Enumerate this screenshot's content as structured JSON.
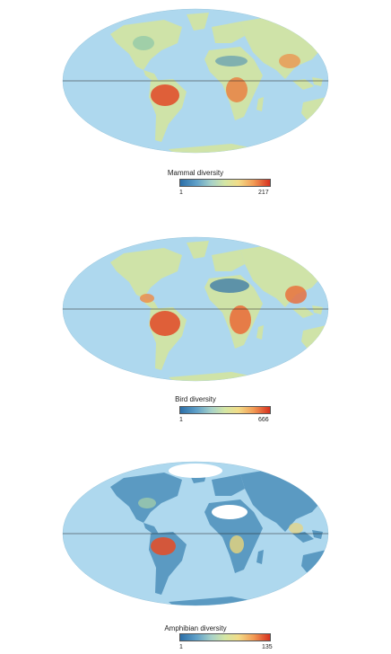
{
  "panels": [
    {
      "id": "mammal",
      "legend_title": "Mammal diversity",
      "min_label": "1",
      "max_label": "217"
    },
    {
      "id": "bird",
      "legend_title": "Bird diversity",
      "min_label": "1",
      "max_label": "666"
    },
    {
      "id": "amphibian",
      "legend_title": "Amphibian diversity",
      "min_label": "1",
      "max_label": "135"
    }
  ],
  "colors": {
    "ocean": "#aed8ee",
    "low": "#2c6fa8",
    "mid": "#e9e29a",
    "high": "#d7301f",
    "no_data": "#ffffff"
  }
}
